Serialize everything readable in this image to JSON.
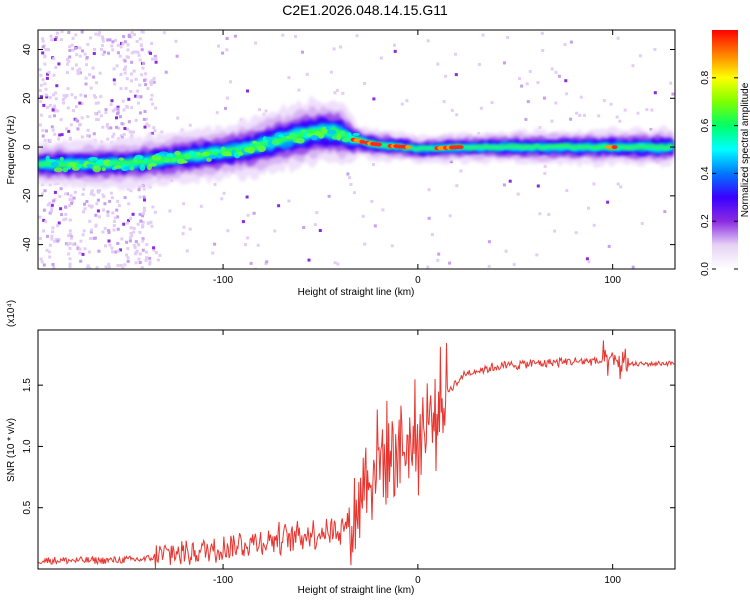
{
  "title": "C2E1.2026.048.14.15.G11",
  "chart_data": [
    {
      "type": "heatmap",
      "xlabel": "Height of straight line (km)",
      "ylabel": "Frequency (Hz)",
      "xlim": [
        -195,
        132
      ],
      "ylim": [
        -50,
        48
      ],
      "xticks": [
        -100,
        0,
        100
      ],
      "xtick_labels": [
        "-100",
        "0",
        "100"
      ],
      "yticks": [
        40,
        20,
        0,
        -20,
        -40
      ],
      "ytick_labels": [
        "40",
        "20",
        "0",
        "-20",
        "-40"
      ],
      "colorbar": {
        "label": "Normalized spectral amplitude",
        "range": [
          0,
          1
        ],
        "ticks": [
          0.0,
          0.2,
          0.4,
          0.6,
          0.8
        ],
        "tick_labels": [
          "0.0",
          "0.2",
          "0.4",
          "0.6",
          "0.8"
        ],
        "colormap": [
          "#ffffff",
          "#e6d2f5",
          "#8a2be2",
          "#3a00ff",
          "#0077ff",
          "#00ffff",
          "#00ff66",
          "#7fff00",
          "#ffff00",
          "#ff7f00",
          "#ff0000"
        ]
      },
      "band_center_hz": [
        [
          -195,
          -7
        ],
        [
          -180,
          -7
        ],
        [
          -160,
          -7
        ],
        [
          -140,
          -6
        ],
        [
          -120,
          -4
        ],
        [
          -100,
          -2
        ],
        [
          -90,
          -1
        ],
        [
          -80,
          1
        ],
        [
          -70,
          3
        ],
        [
          -60,
          5
        ],
        [
          -50,
          6.5
        ],
        [
          -40,
          6
        ],
        [
          -33,
          3
        ],
        [
          -25,
          1.5
        ],
        [
          -15,
          0.5
        ],
        [
          -5,
          0
        ],
        [
          0,
          -1
        ],
        [
          20,
          0
        ],
        [
          60,
          0
        ],
        [
          100,
          0
        ],
        [
          132,
          0
        ]
      ],
      "band_halfwidth_hz": [
        [
          -195,
          4
        ],
        [
          -140,
          4.5
        ],
        [
          -100,
          5
        ],
        [
          -60,
          6
        ],
        [
          -40,
          6
        ],
        [
          -30,
          3
        ],
        [
          0,
          2.5
        ],
        [
          50,
          3
        ],
        [
          132,
          3.5
        ]
      ]
    },
    {
      "type": "line",
      "xlabel": "Height of straight line (km)",
      "ylabel": "SNR (10 * v/v)",
      "scale_label": "(x10⁴)",
      "xlim": [
        -195,
        132
      ],
      "ylim": [
        0,
        1.95
      ],
      "xticks": [
        -100,
        0,
        100
      ],
      "xtick_labels": [
        "-100",
        "0",
        "100"
      ],
      "yticks": [
        0.5,
        1.0,
        1.5
      ],
      "ytick_labels": [
        "0.5",
        "1.0",
        "1.5"
      ],
      "line_color": "#e8352f",
      "trend": [
        [
          -195,
          0.07
        ],
        [
          -160,
          0.07
        ],
        [
          -140,
          0.08
        ],
        [
          -130,
          0.12
        ],
        [
          -110,
          0.15
        ],
        [
          -90,
          0.2
        ],
        [
          -70,
          0.25
        ],
        [
          -50,
          0.3
        ],
        [
          -40,
          0.33
        ],
        [
          -33,
          0.4
        ],
        [
          -28,
          0.7
        ],
        [
          -22,
          0.85
        ],
        [
          -15,
          0.95
        ],
        [
          -8,
          1.0
        ],
        [
          -3,
          1.05
        ],
        [
          2,
          1.1
        ],
        [
          8,
          1.25
        ],
        [
          15,
          1.45
        ],
        [
          25,
          1.6
        ],
        [
          40,
          1.65
        ],
        [
          60,
          1.68
        ],
        [
          90,
          1.7
        ],
        [
          100,
          1.68
        ],
        [
          110,
          1.67
        ],
        [
          132,
          1.68
        ]
      ]
    }
  ]
}
